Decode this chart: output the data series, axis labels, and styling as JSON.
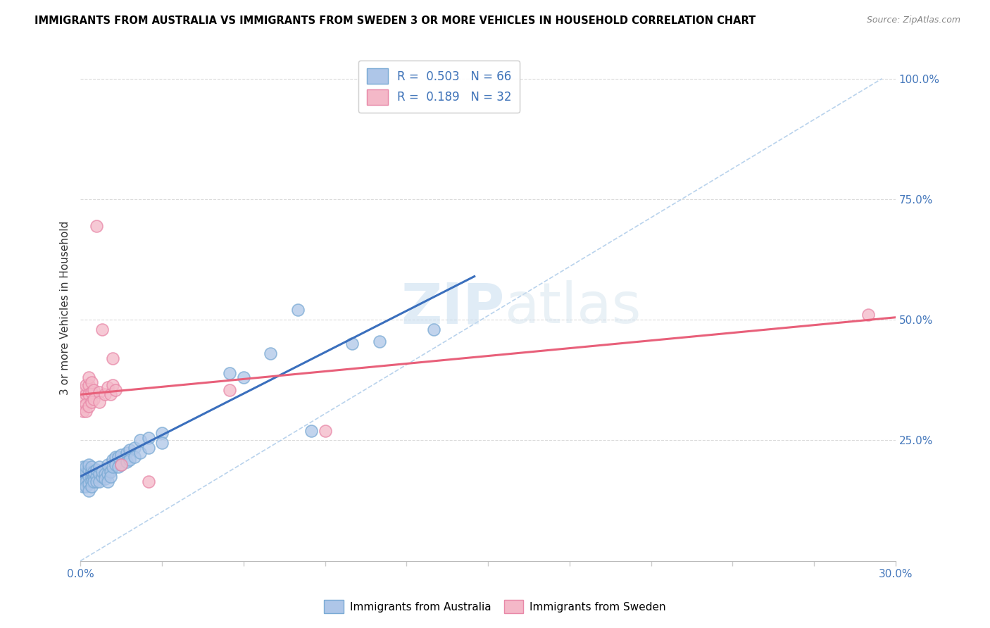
{
  "title": "IMMIGRANTS FROM AUSTRALIA VS IMMIGRANTS FROM SWEDEN 3 OR MORE VEHICLES IN HOUSEHOLD CORRELATION CHART",
  "source": "Source: ZipAtlas.com",
  "ylabel": "3 or more Vehicles in Household",
  "right_ytick_vals": [
    0.25,
    0.5,
    0.75,
    1.0
  ],
  "watermark_zip": "ZIP",
  "watermark_atlas": "atlas",
  "xmin": 0.0,
  "xmax": 0.3,
  "ymin": 0.0,
  "ymax": 1.05,
  "australia_color": "#aec6e8",
  "australia_edge": "#7aaad4",
  "sweden_color": "#f4b8c8",
  "sweden_edge": "#e888a8",
  "australia_line_color": "#3a6fbd",
  "sweden_line_color": "#e8607a",
  "ref_line_color": "#a8c8e8",
  "legend_entries": [
    {
      "label": "R =  0.503   N = 66",
      "color": "#aec6e8",
      "edge": "#7aaad4"
    },
    {
      "label": "R =  0.189   N = 32",
      "color": "#f4b8c8",
      "edge": "#e888a8"
    }
  ],
  "legend_bottom": [
    {
      "label": "Immigrants from Australia",
      "color": "#aec6e8",
      "edge": "#7aaad4"
    },
    {
      "label": "Immigrants from Sweden",
      "color": "#f4b8c8",
      "edge": "#e888a8"
    }
  ],
  "scatter_australia": [
    [
      0.001,
      0.175
    ],
    [
      0.001,
      0.165
    ],
    [
      0.001,
      0.185
    ],
    [
      0.001,
      0.155
    ],
    [
      0.001,
      0.195
    ],
    [
      0.002,
      0.175
    ],
    [
      0.002,
      0.165
    ],
    [
      0.002,
      0.185
    ],
    [
      0.002,
      0.155
    ],
    [
      0.002,
      0.195
    ],
    [
      0.003,
      0.175
    ],
    [
      0.003,
      0.16
    ],
    [
      0.003,
      0.19
    ],
    [
      0.003,
      0.145
    ],
    [
      0.003,
      0.2
    ],
    [
      0.004,
      0.175
    ],
    [
      0.004,
      0.165
    ],
    [
      0.004,
      0.185
    ],
    [
      0.004,
      0.155
    ],
    [
      0.004,
      0.195
    ],
    [
      0.005,
      0.175
    ],
    [
      0.005,
      0.165
    ],
    [
      0.005,
      0.185
    ],
    [
      0.006,
      0.175
    ],
    [
      0.006,
      0.165
    ],
    [
      0.006,
      0.19
    ],
    [
      0.007,
      0.18
    ],
    [
      0.007,
      0.165
    ],
    [
      0.007,
      0.195
    ],
    [
      0.008,
      0.175
    ],
    [
      0.008,
      0.185
    ],
    [
      0.009,
      0.18
    ],
    [
      0.009,
      0.17
    ],
    [
      0.01,
      0.18
    ],
    [
      0.01,
      0.165
    ],
    [
      0.01,
      0.2
    ],
    [
      0.011,
      0.185
    ],
    [
      0.011,
      0.175
    ],
    [
      0.012,
      0.21
    ],
    [
      0.012,
      0.195
    ],
    [
      0.013,
      0.215
    ],
    [
      0.013,
      0.2
    ],
    [
      0.014,
      0.215
    ],
    [
      0.014,
      0.195
    ],
    [
      0.015,
      0.22
    ],
    [
      0.015,
      0.2
    ],
    [
      0.017,
      0.225
    ],
    [
      0.017,
      0.205
    ],
    [
      0.018,
      0.23
    ],
    [
      0.018,
      0.21
    ],
    [
      0.02,
      0.235
    ],
    [
      0.02,
      0.215
    ],
    [
      0.022,
      0.25
    ],
    [
      0.022,
      0.225
    ],
    [
      0.025,
      0.255
    ],
    [
      0.025,
      0.235
    ],
    [
      0.03,
      0.265
    ],
    [
      0.03,
      0.245
    ],
    [
      0.055,
      0.39
    ],
    [
      0.06,
      0.38
    ],
    [
      0.07,
      0.43
    ],
    [
      0.08,
      0.52
    ],
    [
      0.085,
      0.27
    ],
    [
      0.1,
      0.45
    ],
    [
      0.11,
      0.455
    ],
    [
      0.13,
      0.48
    ]
  ],
  "scatter_sweden": [
    [
      0.001,
      0.34
    ],
    [
      0.001,
      0.32
    ],
    [
      0.001,
      0.355
    ],
    [
      0.001,
      0.31
    ],
    [
      0.002,
      0.345
    ],
    [
      0.002,
      0.325
    ],
    [
      0.002,
      0.365
    ],
    [
      0.002,
      0.31
    ],
    [
      0.003,
      0.365
    ],
    [
      0.003,
      0.345
    ],
    [
      0.003,
      0.32
    ],
    [
      0.003,
      0.38
    ],
    [
      0.004,
      0.35
    ],
    [
      0.004,
      0.33
    ],
    [
      0.004,
      0.37
    ],
    [
      0.005,
      0.355
    ],
    [
      0.005,
      0.335
    ],
    [
      0.006,
      0.695
    ],
    [
      0.007,
      0.35
    ],
    [
      0.007,
      0.33
    ],
    [
      0.008,
      0.48
    ],
    [
      0.009,
      0.345
    ],
    [
      0.01,
      0.36
    ],
    [
      0.011,
      0.345
    ],
    [
      0.012,
      0.365
    ],
    [
      0.012,
      0.42
    ],
    [
      0.013,
      0.355
    ],
    [
      0.015,
      0.2
    ],
    [
      0.025,
      0.165
    ],
    [
      0.055,
      0.355
    ],
    [
      0.09,
      0.27
    ],
    [
      0.29,
      0.51
    ]
  ],
  "australia_trend_x": [
    0.0,
    0.145
  ],
  "australia_trend_y": [
    0.175,
    0.59
  ],
  "sweden_trend_x": [
    0.0,
    0.3
  ],
  "sweden_trend_y": [
    0.345,
    0.505
  ],
  "ref_line_x": [
    0.0,
    0.295
  ],
  "ref_line_y": [
    0.0,
    1.0
  ]
}
